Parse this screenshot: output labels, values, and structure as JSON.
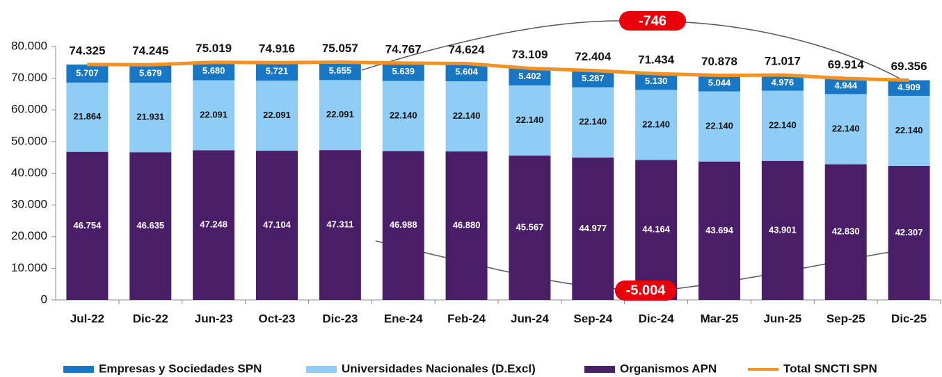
{
  "chart_data": {
    "type": "bar",
    "stacked": true,
    "categories": [
      "Jul-22",
      "Dic-22",
      "Jun-23",
      "Oct-23",
      "Dic-23",
      "Ene-24",
      "Feb-24",
      "Jun-24",
      "Sep-24",
      "Dic-24",
      "Mar-25",
      "Jun-25",
      "Sep-25",
      "Dic-25"
    ],
    "series": [
      {
        "name": "Empresas y Sociedades SPN",
        "color": "#1777c4",
        "label_color": "#ffffff",
        "values": [
          5707,
          5679,
          5680,
          5721,
          5655,
          5639,
          5604,
          5402,
          5287,
          5130,
          5044,
          4976,
          4944,
          4909
        ],
        "value_labels": [
          "5.707",
          "5.679",
          "5.680",
          "5.721",
          "5.655",
          "5.639",
          "5.604",
          "5.402",
          "5.287",
          "5.130",
          "5.044",
          "4.976",
          "4.944",
          "4.909"
        ]
      },
      {
        "name": "Universidades Nacionales (D.Excl)",
        "color": "#8fcdf6",
        "label_color": "#111111",
        "values": [
          21864,
          21931,
          22091,
          22091,
          22091,
          22140,
          22140,
          22140,
          22140,
          22140,
          22140,
          22140,
          22140,
          22140
        ],
        "value_labels": [
          "21.864",
          "21.931",
          "22.091",
          "22.091",
          "22.091",
          "22.140",
          "22.140",
          "22.140",
          "22.140",
          "22.140",
          "22.140",
          "22.140",
          "22.140",
          "22.140"
        ]
      },
      {
        "name": "Organismos APN",
        "color": "#4a1d68",
        "label_color": "#ffffff",
        "values": [
          46754,
          46635,
          47248,
          47104,
          47311,
          46988,
          46880,
          45567,
          44977,
          44164,
          43694,
          43901,
          42830,
          42307
        ],
        "value_labels": [
          "46.754",
          "46.635",
          "47.248",
          "47.104",
          "47.311",
          "46.988",
          "46.880",
          "45.567",
          "44.977",
          "44.164",
          "43.694",
          "43.901",
          "42.830",
          "42.307"
        ]
      },
      {
        "name": "Total SNCTI SPN",
        "type": "line",
        "color": "#f39222",
        "values": [
          74325,
          74245,
          75019,
          74916,
          75057,
          74767,
          74624,
          73109,
          72404,
          71434,
          70878,
          71017,
          69914,
          69356
        ],
        "value_labels": [
          "74.325",
          "74.245",
          "75.019",
          "74.916",
          "75.057",
          "74.767",
          "74.624",
          "73.109",
          "72.404",
          "71.434",
          "70.878",
          "71.017",
          "69.914",
          "69.356"
        ]
      }
    ],
    "ylim": [
      0,
      80000
    ],
    "yticks": [
      0,
      {
        "value": 10000,
        "label": "10.000"
      },
      {
        "value": 20000,
        "label": "20.000"
      },
      {
        "value": 30000,
        "label": "30.000"
      },
      {
        "value": 40000,
        "label": "40.000"
      },
      {
        "value": 50000,
        "label": "50.000"
      },
      {
        "value": 60000,
        "label": "60.000"
      },
      {
        "value": 70000,
        "label": "70.000"
      },
      {
        "value": 80000,
        "label": "80.000"
      }
    ],
    "legend": "bottom",
    "annotations": [
      "-746",
      "-5.004"
    ]
  }
}
